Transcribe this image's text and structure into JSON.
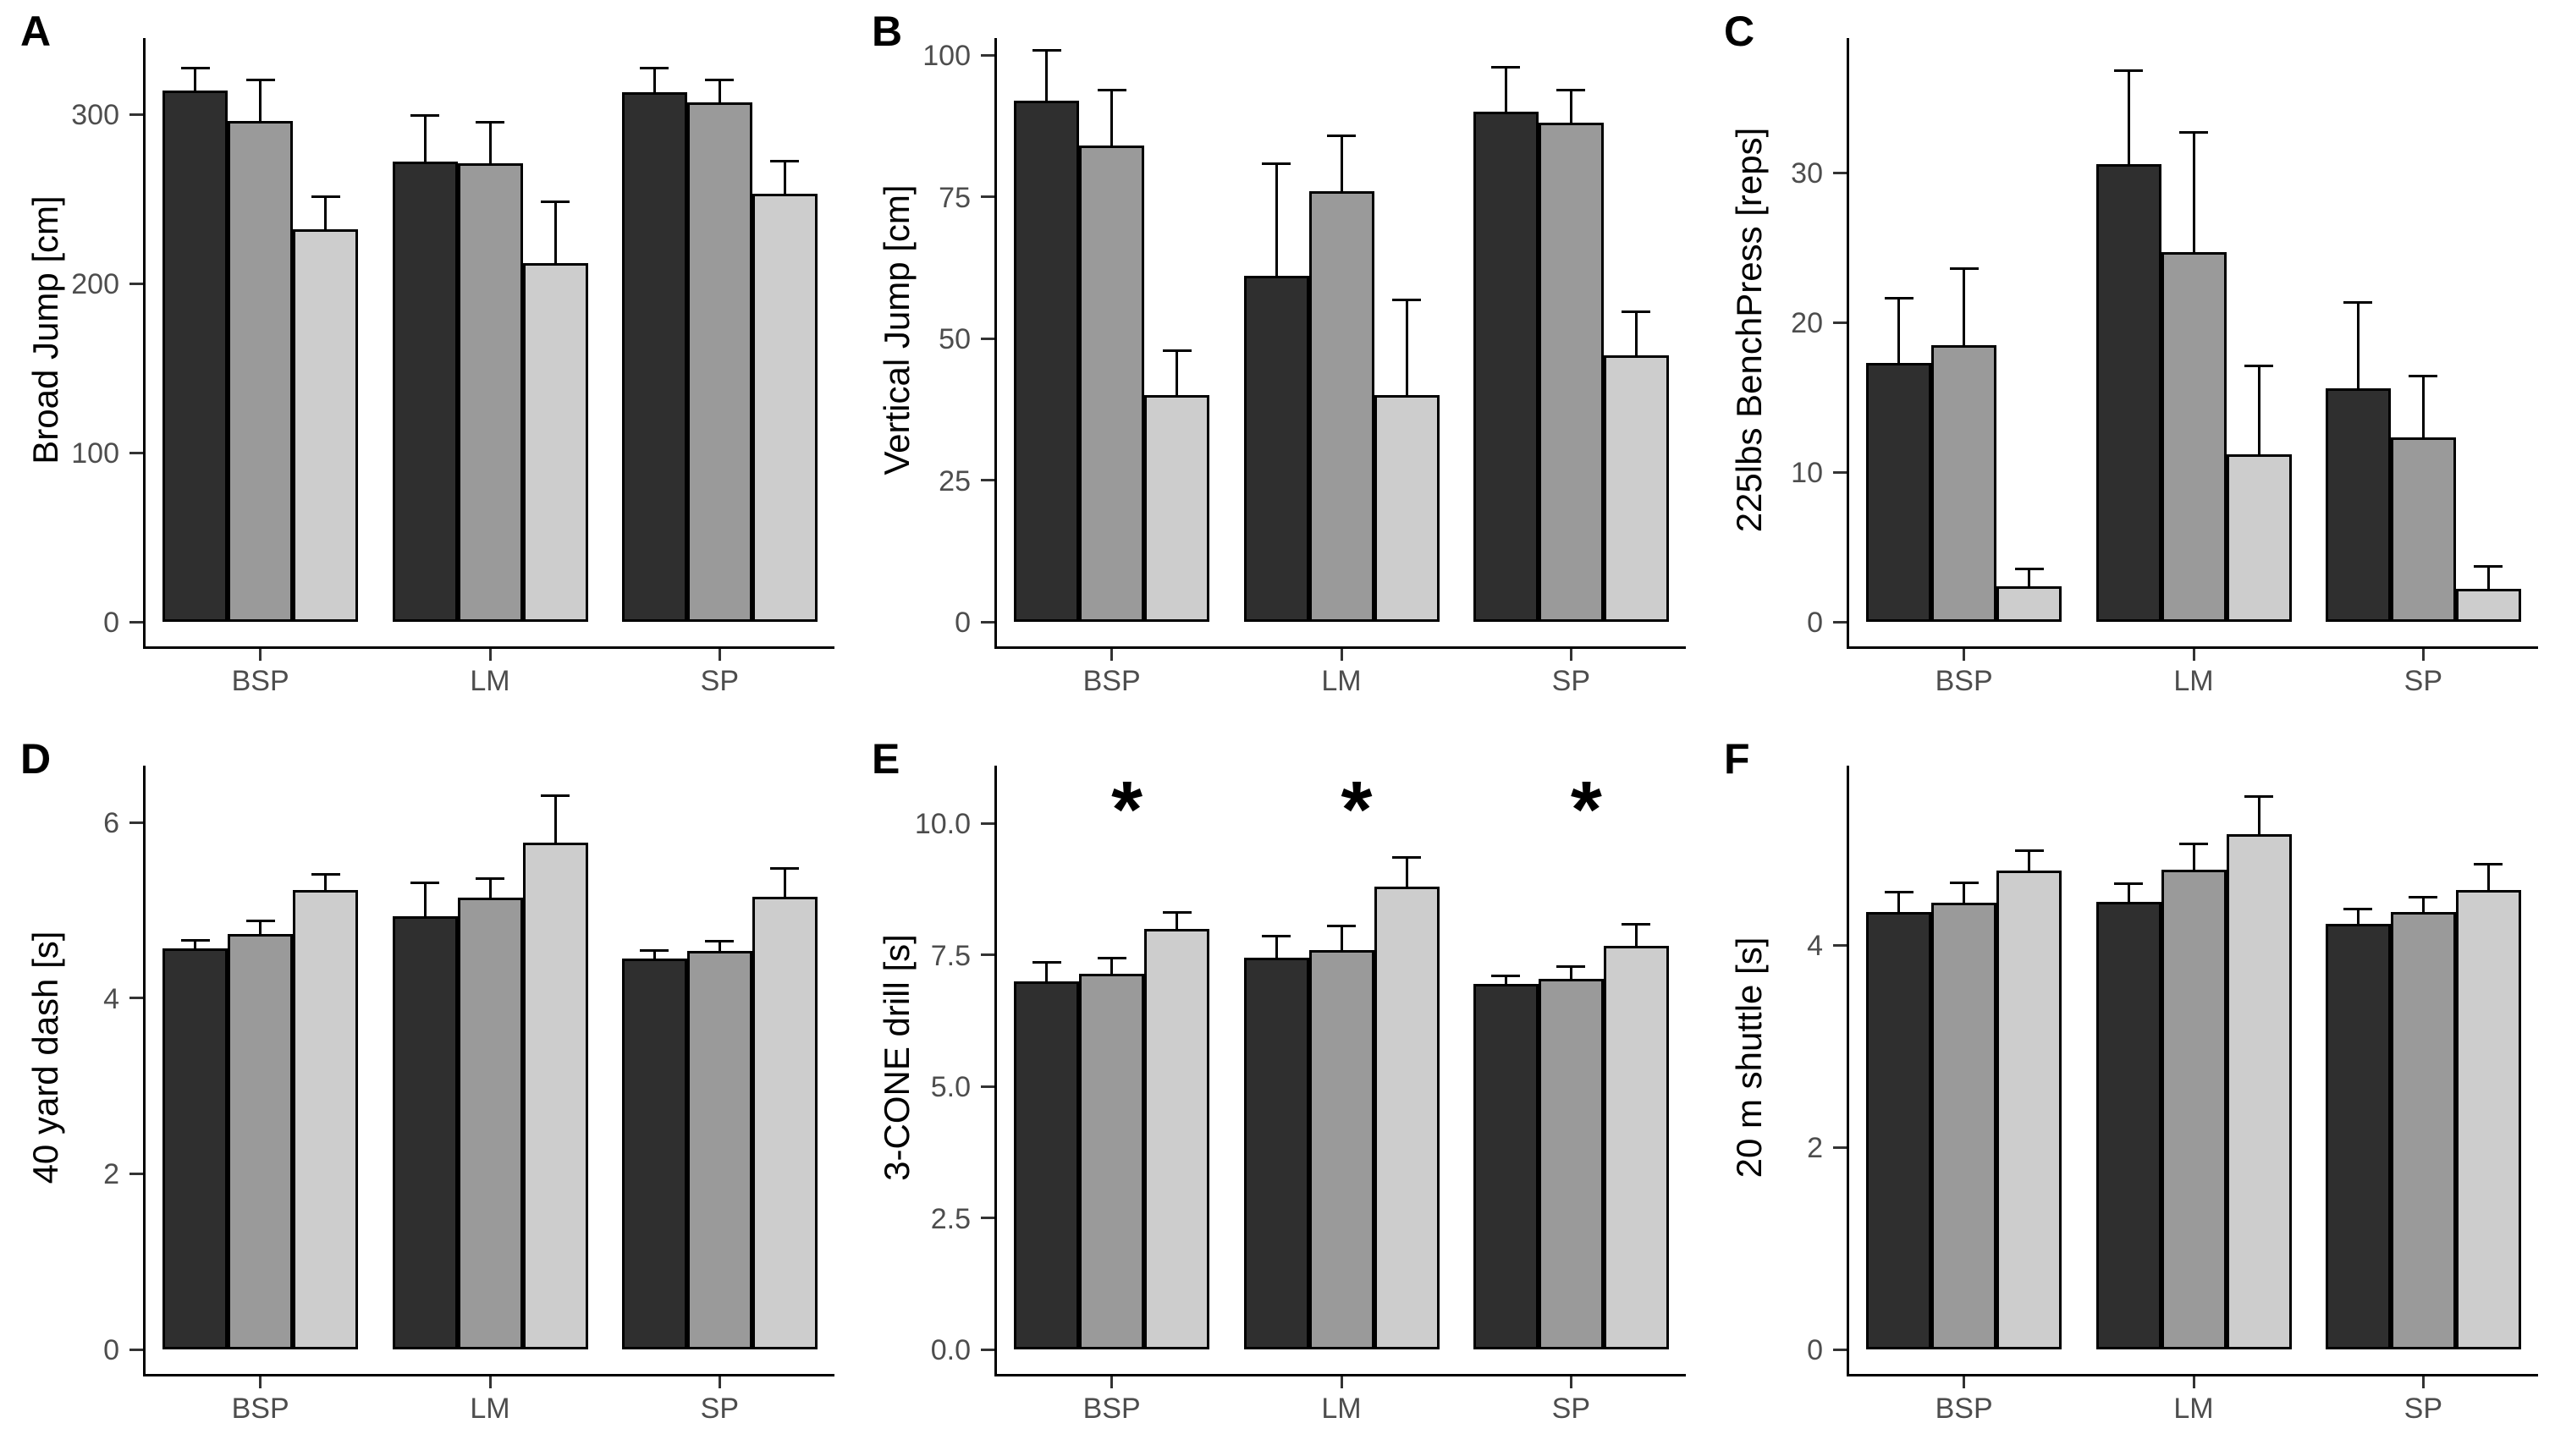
{
  "figure": {
    "panel_letters": [
      "A",
      "B",
      "C",
      "D",
      "E",
      "F"
    ],
    "x_axis_categories": [
      "BSP",
      "LM",
      "SP"
    ]
  },
  "colors": {
    "bar_dark": "#2f2f2f",
    "bar_medium": "#9a9a9a",
    "bar_light": "#cdcdcd",
    "axis_line": "#000000",
    "tick_text": "#4d4d4d",
    "background": "#ffffff"
  },
  "chart_data": [
    {
      "type": "bar",
      "panel_label": "A",
      "ylabel": "Broad Jump [cm]",
      "xlabel": "",
      "categories": [
        "BSP",
        "LM",
        "SP"
      ],
      "ylim": [
        0,
        345
      ],
      "yticks": [
        0,
        100,
        200,
        300
      ],
      "ytick_labels": [
        "0",
        "100",
        "200",
        "300"
      ],
      "grid": false,
      "legend": "none",
      "series": [
        {
          "name": "dark-gray",
          "color": "#2f2f2f",
          "values": [
            314,
            272,
            313
          ],
          "errors_upper": [
            14,
            28,
            15
          ]
        },
        {
          "name": "medium-gray",
          "color": "#9a9a9a",
          "values": [
            296,
            271,
            307
          ],
          "errors_upper": [
            25,
            25,
            14
          ]
        },
        {
          "name": "light-gray",
          "color": "#cdcdcd",
          "values": [
            232,
            212,
            253
          ],
          "errors_upper": [
            20,
            37,
            20
          ]
        }
      ],
      "annotations": []
    },
    {
      "type": "bar",
      "panel_label": "B",
      "ylabel": "Vertical Jump [cm]",
      "xlabel": "",
      "categories": [
        "BSP",
        "LM",
        "SP"
      ],
      "ylim": [
        0,
        103
      ],
      "yticks": [
        0,
        25,
        50,
        75,
        100
      ],
      "ytick_labels": [
        "0",
        "25",
        "50",
        "75",
        "100"
      ],
      "grid": false,
      "legend": "none",
      "series": [
        {
          "name": "dark-gray",
          "color": "#2f2f2f",
          "values": [
            92,
            61,
            90
          ],
          "errors_upper": [
            9,
            20,
            8
          ]
        },
        {
          "name": "medium-gray",
          "color": "#9a9a9a",
          "values": [
            84,
            76,
            88
          ],
          "errors_upper": [
            10,
            10,
            6
          ]
        },
        {
          "name": "light-gray",
          "color": "#cdcdcd",
          "values": [
            40,
            40,
            47
          ],
          "errors_upper": [
            8,
            17,
            8
          ]
        }
      ],
      "annotations": []
    },
    {
      "type": "bar",
      "panel_label": "C",
      "ylabel": "225lbs BenchPress [reps]",
      "xlabel": "",
      "categories": [
        "BSP",
        "LM",
        "SP"
      ],
      "ylim": [
        0,
        39
      ],
      "yticks": [
        0,
        10,
        20,
        30
      ],
      "ytick_labels": [
        "0",
        "10",
        "20",
        "30"
      ],
      "grid": false,
      "legend": "none",
      "series": [
        {
          "name": "dark-gray",
          "color": "#2f2f2f",
          "values": [
            17.3,
            30.6,
            15.6
          ],
          "errors_upper": [
            4.4,
            6.3,
            5.8
          ]
        },
        {
          "name": "medium-gray",
          "color": "#9a9a9a",
          "values": [
            18.5,
            24.7,
            12.3
          ],
          "errors_upper": [
            5.2,
            8.1,
            4.2
          ]
        },
        {
          "name": "light-gray",
          "color": "#cdcdcd",
          "values": [
            2.4,
            11.2,
            2.2
          ],
          "errors_upper": [
            1.2,
            6.0,
            1.6
          ]
        }
      ],
      "annotations": []
    },
    {
      "type": "bar",
      "panel_label": "D",
      "ylabel": "40 yard dash [s]",
      "xlabel": "",
      "categories": [
        "BSP",
        "LM",
        "SP"
      ],
      "ylim": [
        0,
        6.65
      ],
      "yticks": [
        0,
        2,
        4,
        6
      ],
      "ytick_labels": [
        "0",
        "2",
        "4",
        "6"
      ],
      "grid": false,
      "legend": "none",
      "series": [
        {
          "name": "dark-gray",
          "color": "#2f2f2f",
          "values": [
            4.57,
            4.93,
            4.45
          ],
          "errors_upper": [
            0.1,
            0.4,
            0.11
          ]
        },
        {
          "name": "medium-gray",
          "color": "#9a9a9a",
          "values": [
            4.73,
            5.15,
            4.54
          ],
          "errors_upper": [
            0.17,
            0.23,
            0.12
          ]
        },
        {
          "name": "light-gray",
          "color": "#cdcdcd",
          "values": [
            5.23,
            5.77,
            5.16
          ],
          "errors_upper": [
            0.2,
            0.55,
            0.33
          ]
        }
      ],
      "annotations": []
    },
    {
      "type": "bar",
      "panel_label": "E",
      "ylabel": "3-CONE drill [s]",
      "xlabel": "",
      "categories": [
        "BSP",
        "LM",
        "SP"
      ],
      "ylim": [
        0,
        11.1
      ],
      "yticks": [
        0,
        2.5,
        5,
        7.5,
        10
      ],
      "ytick_labels": [
        "0.0",
        "2.5",
        "5.0",
        "7.5",
        "10.0"
      ],
      "grid": false,
      "legend": "none",
      "series": [
        {
          "name": "dark-gray",
          "color": "#2f2f2f",
          "values": [
            7.0,
            7.45,
            6.95
          ],
          "errors_upper": [
            0.38,
            0.43,
            0.18
          ]
        },
        {
          "name": "medium-gray",
          "color": "#9a9a9a",
          "values": [
            7.15,
            7.6,
            7.05
          ],
          "errors_upper": [
            0.32,
            0.48,
            0.25
          ]
        },
        {
          "name": "light-gray",
          "color": "#cdcdcd",
          "values": [
            8.0,
            8.8,
            7.68
          ],
          "errors_upper": [
            0.33,
            0.58,
            0.43
          ]
        }
      ],
      "annotations": [
        "*",
        "*",
        "*"
      ]
    },
    {
      "type": "bar",
      "panel_label": "F",
      "ylabel": "20 m shuttle [s]",
      "xlabel": "",
      "categories": [
        "BSP",
        "LM",
        "SP"
      ],
      "ylim": [
        0,
        5.78
      ],
      "yticks": [
        0,
        2,
        4
      ],
      "ytick_labels": [
        "0",
        "2",
        "4"
      ],
      "grid": false,
      "legend": "none",
      "series": [
        {
          "name": "dark-gray",
          "color": "#2f2f2f",
          "values": [
            4.33,
            4.43,
            4.21
          ],
          "errors_upper": [
            0.21,
            0.19,
            0.16
          ]
        },
        {
          "name": "medium-gray",
          "color": "#9a9a9a",
          "values": [
            4.42,
            4.75,
            4.33
          ],
          "errors_upper": [
            0.21,
            0.27,
            0.16
          ]
        },
        {
          "name": "light-gray",
          "color": "#cdcdcd",
          "values": [
            4.74,
            5.1,
            4.55
          ],
          "errors_upper": [
            0.21,
            0.39,
            0.27
          ]
        }
      ],
      "annotations": []
    }
  ]
}
